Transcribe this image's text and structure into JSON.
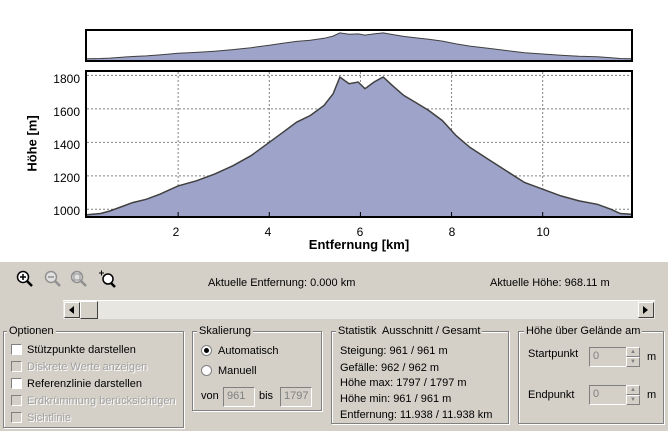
{
  "chart_data": {
    "type": "area",
    "xlabel": "Entfernung [km]",
    "ylabel": "Höhe [m]",
    "xlim": [
      0,
      11.938
    ],
    "ylim": [
      960,
      1820
    ],
    "xticks": [
      "2",
      "4",
      "6",
      "8",
      "10"
    ],
    "yticks": [
      "1000",
      "1200",
      "1400",
      "1600",
      "1800"
    ],
    "grid": true,
    "fill_color": "#9ea3c9",
    "line_color": "#404040",
    "x": [
      0,
      0.3,
      0.5,
      0.8,
      1.0,
      1.3,
      1.6,
      2.0,
      2.4,
      2.8,
      3.2,
      3.6,
      4.0,
      4.3,
      4.6,
      4.9,
      5.2,
      5.4,
      5.55,
      5.75,
      5.95,
      6.1,
      6.3,
      6.5,
      6.7,
      6.95,
      7.2,
      7.5,
      7.8,
      8.1,
      8.4,
      8.8,
      9.2,
      9.6,
      10.0,
      10.4,
      10.8,
      11.2,
      11.5,
      11.7,
      11.938
    ],
    "y": [
      968,
      975,
      990,
      1020,
      1040,
      1060,
      1090,
      1140,
      1170,
      1210,
      1260,
      1320,
      1400,
      1460,
      1520,
      1560,
      1620,
      1690,
      1790,
      1750,
      1760,
      1720,
      1760,
      1790,
      1740,
      1680,
      1640,
      1590,
      1530,
      1440,
      1370,
      1300,
      1230,
      1160,
      1120,
      1080,
      1050,
      1030,
      1000,
      975,
      970
    ]
  },
  "toolbar": {
    "zoom_in": "zoom-in-icon",
    "zoom_out": "zoom-out-icon",
    "zoom_fit": "zoom-fit-icon",
    "zoom_select": "zoom-select-icon"
  },
  "status": {
    "distance": "Aktuelle Entfernung: 0.000 km",
    "height": "Aktuelle Höhe: 968.11 m"
  },
  "options": {
    "title": "Optionen",
    "items": [
      {
        "label": "Stützpunkte darstellen",
        "enabled": true
      },
      {
        "label": "Diskrete Werte anzeigen",
        "enabled": false
      },
      {
        "label": "Referenzlinie darstellen",
        "enabled": true
      },
      {
        "label": "Erdkrümmung berücksichtigen",
        "enabled": false
      },
      {
        "label": "Sichtlinie",
        "enabled": false
      }
    ]
  },
  "scaling": {
    "title": "Skalierung",
    "auto_label": "Automatisch",
    "manual_label": "Manuell",
    "from_label": "von",
    "from_value": "961",
    "to_label": "bis",
    "to_value": "1797"
  },
  "stats": {
    "title": "Statistik  Ausschnitt / Gesamt",
    "lines": [
      "Steigung: 961 / 961 m",
      "Gefälle: 962 / 962 m",
      "Höhe max: 1797 / 1797 m",
      "Höhe min: 961 / 961 m",
      "Entfernung: 11.938 / 11.938 km"
    ]
  },
  "terrain": {
    "title": "Höhe über Gelände am",
    "start_label": "Startpunkt",
    "start_value": "0",
    "start_unit": "m",
    "end_label": "Endpunkt",
    "end_value": "0",
    "end_unit": "m"
  }
}
